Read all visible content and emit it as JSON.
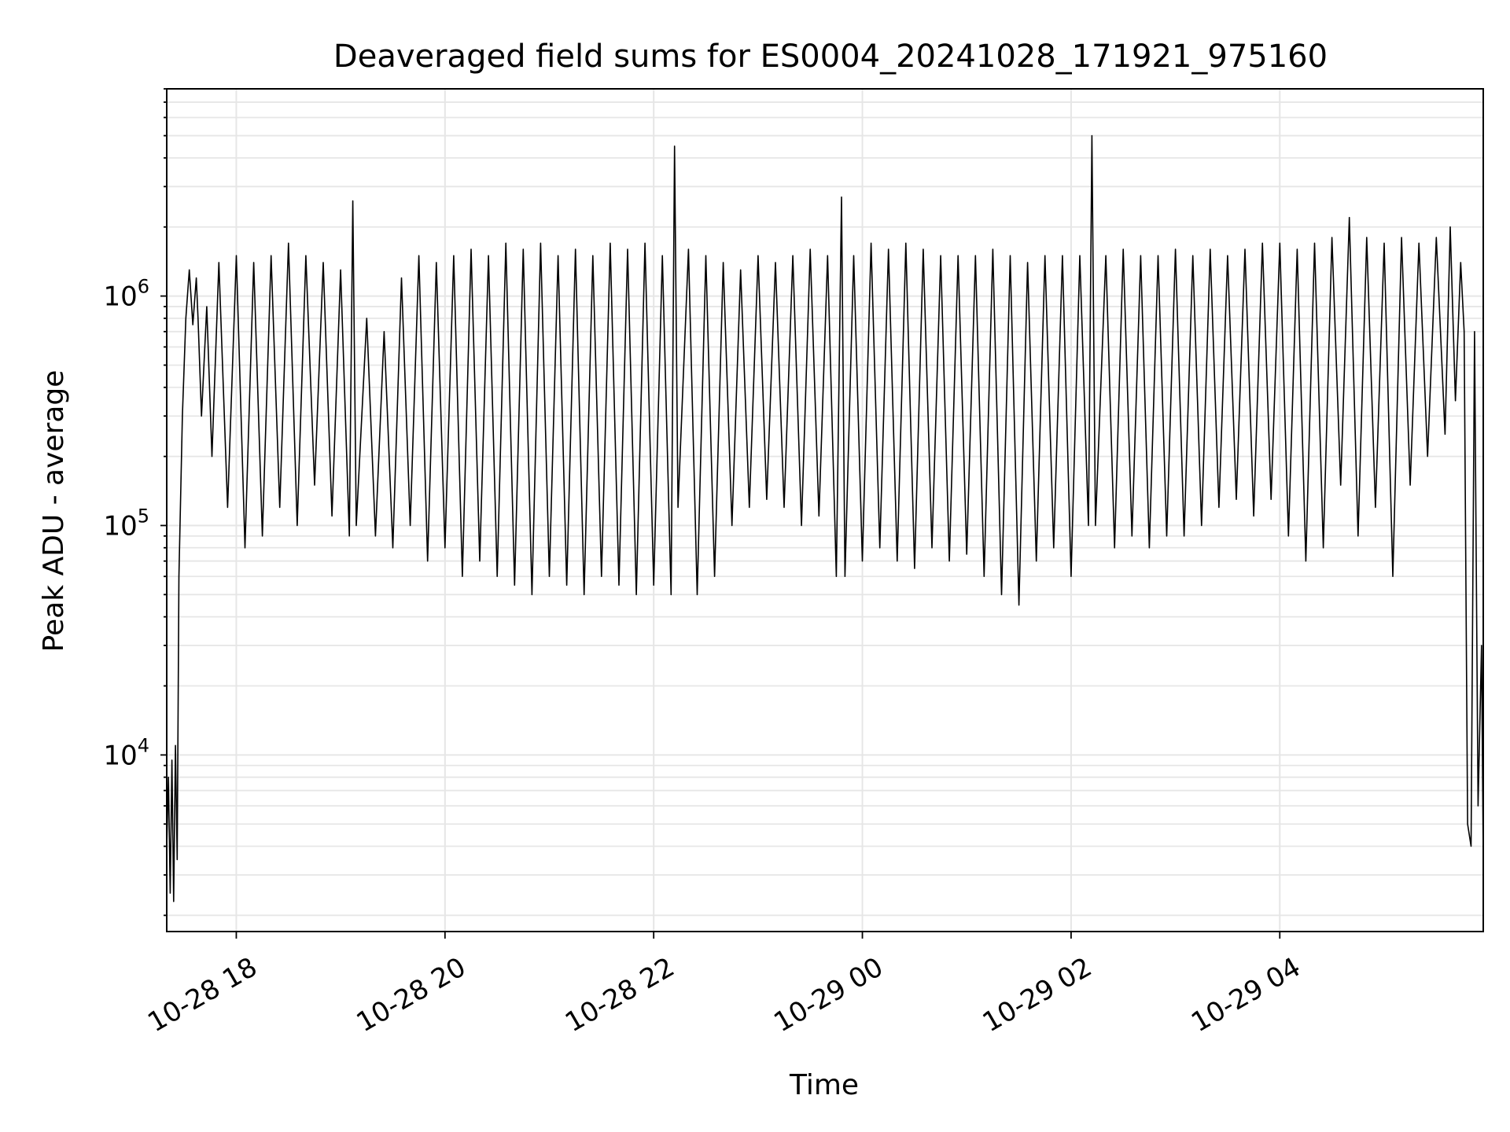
{
  "chart_data": {
    "type": "line",
    "title": "Deaveraged field sums for ES0004_20241028_171921_975160",
    "xlabel": "Time",
    "ylabel": "Peak ADU - average",
    "yscale": "log",
    "x_tick_labels": [
      "10-28 18",
      "10-28 20",
      "10-28 22",
      "10-29 00",
      "10-29 02",
      "10-29 04"
    ],
    "x_ticks": [
      "2024-10-28 18:00",
      "2024-10-28 20:00",
      "2024-10-28 22:00",
      "2024-10-29 00:00",
      "2024-10-29 02:00",
      "2024-10-29 04:00"
    ],
    "xlim": [
      "2024-10-28 17:20",
      "2024-10-29 05:57"
    ],
    "y_ticks": [
      10000,
      100000,
      1000000
    ],
    "y_tick_labels": [
      {
        "base": "10",
        "exp": "4"
      },
      {
        "base": "10",
        "exp": "5"
      },
      {
        "base": "10",
        "exp": "6"
      }
    ],
    "ylim": [
      1700,
      8000000
    ],
    "grid": true,
    "line_color": "#000000",
    "grid_color": "#e6e6e6",
    "series": [
      {
        "x": [
          "2024-10-28 17:20",
          "2024-10-28 17:21",
          "2024-10-28 17:22",
          "2024-10-28 17:23",
          "2024-10-28 17:24",
          "2024-10-28 17:25",
          "2024-10-28 17:26",
          "2024-10-28 17:27",
          "2024-10-28 17:29",
          "2024-10-28 17:31",
          "2024-10-28 17:33",
          "2024-10-28 17:35",
          "2024-10-28 17:37",
          "2024-10-28 17:38",
          "2024-10-28 17:40",
          "2024-10-28 17:43",
          "2024-10-28 17:46",
          "2024-10-28 17:50",
          "2024-10-28 17:55",
          "2024-10-28 18:00",
          "2024-10-28 18:05",
          "2024-10-28 18:10",
          "2024-10-28 18:15",
          "2024-10-28 18:20",
          "2024-10-28 18:25",
          "2024-10-28 18:30",
          "2024-10-28 18:35",
          "2024-10-28 18:40",
          "2024-10-28 18:45",
          "2024-10-28 18:50",
          "2024-10-28 18:55",
          "2024-10-28 19:00",
          "2024-10-28 19:05",
          "2024-10-28 19:07",
          "2024-10-28 19:09",
          "2024-10-28 19:15",
          "2024-10-28 19:20",
          "2024-10-28 19:25",
          "2024-10-28 19:30",
          "2024-10-28 19:35",
          "2024-10-28 19:40",
          "2024-10-28 19:45",
          "2024-10-28 19:50",
          "2024-10-28 19:55",
          "2024-10-28 20:00",
          "2024-10-28 20:05",
          "2024-10-28 20:10",
          "2024-10-28 20:15",
          "2024-10-28 20:20",
          "2024-10-28 20:25",
          "2024-10-28 20:30",
          "2024-10-28 20:35",
          "2024-10-28 20:40",
          "2024-10-28 20:45",
          "2024-10-28 20:50",
          "2024-10-28 20:55",
          "2024-10-28 21:00",
          "2024-10-28 21:05",
          "2024-10-28 21:10",
          "2024-10-28 21:15",
          "2024-10-28 21:20",
          "2024-10-28 21:25",
          "2024-10-28 21:30",
          "2024-10-28 21:35",
          "2024-10-28 21:40",
          "2024-10-28 21:45",
          "2024-10-28 21:50",
          "2024-10-28 21:55",
          "2024-10-28 22:00",
          "2024-10-28 22:05",
          "2024-10-28 22:10",
          "2024-10-28 22:12",
          "2024-10-28 22:14",
          "2024-10-28 22:20",
          "2024-10-28 22:25",
          "2024-10-28 22:30",
          "2024-10-28 22:35",
          "2024-10-28 22:40",
          "2024-10-28 22:45",
          "2024-10-28 22:50",
          "2024-10-28 22:55",
          "2024-10-28 23:00",
          "2024-10-28 23:05",
          "2024-10-28 23:10",
          "2024-10-28 23:15",
          "2024-10-28 23:20",
          "2024-10-28 23:25",
          "2024-10-28 23:30",
          "2024-10-28 23:35",
          "2024-10-28 23:40",
          "2024-10-28 23:45",
          "2024-10-28 23:48",
          "2024-10-28 23:50",
          "2024-10-28 23:55",
          "2024-10-29 00:00",
          "2024-10-29 00:05",
          "2024-10-29 00:10",
          "2024-10-29 00:15",
          "2024-10-29 00:20",
          "2024-10-29 00:25",
          "2024-10-29 00:30",
          "2024-10-29 00:35",
          "2024-10-29 00:40",
          "2024-10-29 00:45",
          "2024-10-29 00:50",
          "2024-10-29 00:55",
          "2024-10-29 01:00",
          "2024-10-29 01:05",
          "2024-10-29 01:10",
          "2024-10-29 01:15",
          "2024-10-29 01:20",
          "2024-10-29 01:25",
          "2024-10-29 01:30",
          "2024-10-29 01:35",
          "2024-10-29 01:40",
          "2024-10-29 01:45",
          "2024-10-29 01:50",
          "2024-10-29 01:55",
          "2024-10-29 02:00",
          "2024-10-29 02:05",
          "2024-10-29 02:10",
          "2024-10-29 02:12",
          "2024-10-29 02:14",
          "2024-10-29 02:20",
          "2024-10-29 02:25",
          "2024-10-29 02:30",
          "2024-10-29 02:35",
          "2024-10-29 02:40",
          "2024-10-29 02:45",
          "2024-10-29 02:50",
          "2024-10-29 02:55",
          "2024-10-29 03:00",
          "2024-10-29 03:05",
          "2024-10-29 03:10",
          "2024-10-29 03:15",
          "2024-10-29 03:20",
          "2024-10-29 03:25",
          "2024-10-29 03:30",
          "2024-10-29 03:35",
          "2024-10-29 03:40",
          "2024-10-29 03:45",
          "2024-10-29 03:50",
          "2024-10-29 03:55",
          "2024-10-29 04:00",
          "2024-10-29 04:05",
          "2024-10-29 04:10",
          "2024-10-29 04:15",
          "2024-10-29 04:20",
          "2024-10-29 04:25",
          "2024-10-29 04:30",
          "2024-10-29 04:35",
          "2024-10-29 04:40",
          "2024-10-29 04:45",
          "2024-10-29 04:50",
          "2024-10-29 04:55",
          "2024-10-29 05:00",
          "2024-10-29 05:05",
          "2024-10-29 05:10",
          "2024-10-29 05:15",
          "2024-10-29 05:20",
          "2024-10-29 05:25",
          "2024-10-29 05:30",
          "2024-10-29 05:35",
          "2024-10-29 05:38",
          "2024-10-29 05:41",
          "2024-10-29 05:44",
          "2024-10-29 05:46",
          "2024-10-29 05:48",
          "2024-10-29 05:50",
          "2024-10-29 05:52",
          "2024-10-29 05:54",
          "2024-10-29 05:56",
          "2024-10-29 05:57"
        ],
        "y": [
          4000,
          8000,
          2500,
          9500,
          2300,
          11000,
          3500,
          60000,
          300000,
          800000,
          1300000,
          750000,
          1200000,
          800000,
          300000,
          900000,
          200000,
          1400000,
          120000,
          1500000,
          80000,
          1400000,
          90000,
          1500000,
          120000,
          1700000,
          100000,
          1500000,
          150000,
          1400000,
          110000,
          1300000,
          90000,
          2600000,
          100000,
          800000,
          90000,
          700000,
          80000,
          1200000,
          100000,
          1500000,
          70000,
          1400000,
          80000,
          1500000,
          60000,
          1600000,
          70000,
          1500000,
          60000,
          1700000,
          55000,
          1600000,
          50000,
          1700000,
          60000,
          1500000,
          55000,
          1600000,
          50000,
          1500000,
          60000,
          1700000,
          55000,
          1600000,
          50000,
          1700000,
          55000,
          1500000,
          50000,
          4500000,
          120000,
          1600000,
          50000,
          1500000,
          60000,
          1400000,
          100000,
          1300000,
          120000,
          1500000,
          130000,
          1400000,
          120000,
          1500000,
          100000,
          1600000,
          110000,
          1500000,
          60000,
          2700000,
          60000,
          1500000,
          70000,
          1700000,
          80000,
          1600000,
          70000,
          1700000,
          65000,
          1600000,
          80000,
          1500000,
          70000,
          1500000,
          75000,
          1500000,
          60000,
          1600000,
          50000,
          1500000,
          45000,
          1400000,
          70000,
          1500000,
          80000,
          1500000,
          60000,
          1500000,
          100000,
          5000000,
          100000,
          1500000,
          80000,
          1600000,
          90000,
          1500000,
          80000,
          1500000,
          90000,
          1600000,
          90000,
          1500000,
          100000,
          1600000,
          120000,
          1500000,
          130000,
          1600000,
          110000,
          1700000,
          130000,
          1700000,
          90000,
          1600000,
          70000,
          1700000,
          80000,
          1800000,
          150000,
          2200000,
          90000,
          1800000,
          120000,
          1700000,
          60000,
          1800000,
          150000,
          1700000,
          200000,
          1800000,
          250000,
          2000000,
          350000,
          1400000,
          700000,
          5000,
          4000,
          700000,
          6000,
          30000,
          3500
        ]
      }
    ]
  }
}
